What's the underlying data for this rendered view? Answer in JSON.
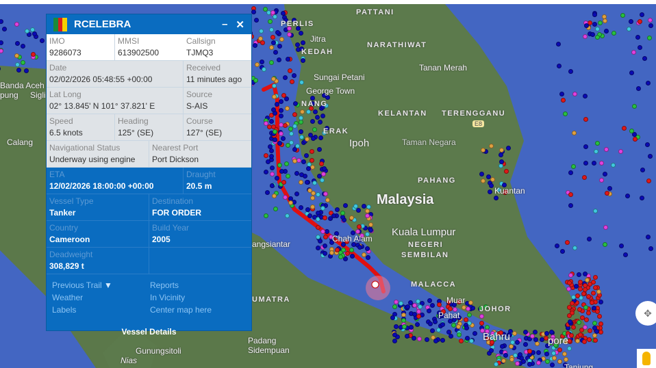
{
  "vessel": {
    "name": "RCELEBRA",
    "flag_colors": [
      "#1a8a3a",
      "#d81e1e",
      "#f5d000"
    ],
    "minimize_label": "–",
    "close_label": "✕",
    "imo_label": "IMO",
    "imo": "9286073",
    "mmsi_label": "MMSI",
    "mmsi": "613902500",
    "callsign_label": "Callsign",
    "callsign": "TJMQ3",
    "date_label": "Date",
    "date": "02/02/2026 05:48:55 +00:00",
    "received_label": "Received",
    "received": "11 minutes ago",
    "latlong_label": "Lat Long",
    "latlong": "02° 13.845' N 101° 37.821' E",
    "source_label": "Source",
    "source": "S-AIS",
    "speed_label": "Speed",
    "speed": "6.5 knots",
    "heading_label": "Heading",
    "heading": "125° (SE)",
    "course_label": "Course",
    "course": "127° (SE)",
    "nav_status_label": "Navigational Status",
    "nav_status": "Underway using engine",
    "nearest_port_label": "Nearest Port",
    "nearest_port": "Port Dickson",
    "eta_label": "ETA",
    "eta": "12/02/2026 18:00:00 +00:00",
    "draught_label": "Draught",
    "draught": "20.5 m",
    "vessel_type_label": "Vessel Type",
    "vessel_type": "Tanker",
    "destination_label": "Destination",
    "destination": "FOR ORDER",
    "country_label": "Country",
    "country": "Cameroon",
    "build_year_label": "Build Year",
    "build_year": "2005",
    "deadweight_label": "Deadweight",
    "deadweight": "308,829 t"
  },
  "links": {
    "previous_trail": "Previous Trail",
    "reports": "Reports",
    "weather": "Weather",
    "in_vicinity": "In Vicinity",
    "labels": "Labels",
    "center_map": "Center map here",
    "vessel_details": "Vessel Details"
  },
  "map": {
    "labels": [
      "PATTANI",
      "PERLIS",
      "Jitra",
      "KEDAH",
      "NARATHIWAT",
      "Tanan Merah",
      "Sungai Petani",
      "George Town",
      "NANG",
      "KELANTAN",
      "TERENGGANU",
      "E8",
      "ERAK",
      "Ipoh",
      "Taman Negara",
      "PAHANG",
      "Malaysia",
      "Kuantan",
      "Kuala Lumpur",
      "Chah Alam",
      "NEGERI",
      "SEMBILAN",
      "angsiantar",
      "MALACCA",
      "Muar",
      "JOHOR",
      "Pahat",
      "Bahru",
      "UMATRA",
      "Padang",
      "Sidempuan",
      "Gunungsitoli",
      "Nias",
      "Banda Aceh",
      "pung",
      "Sigli",
      "Calang",
      "pore",
      "Tanjung"
    ],
    "colors": {
      "sea": "#4366c2",
      "land": "#5c7a4c",
      "trail": "#e01010"
    },
    "marker_colors": [
      "#0a0ab4",
      "#0a0ab4",
      "#0a0ab4",
      "#0a0ab4",
      "#e01818",
      "#28c040",
      "#e0a040",
      "#40c8e0",
      "#e040e0"
    ]
  }
}
